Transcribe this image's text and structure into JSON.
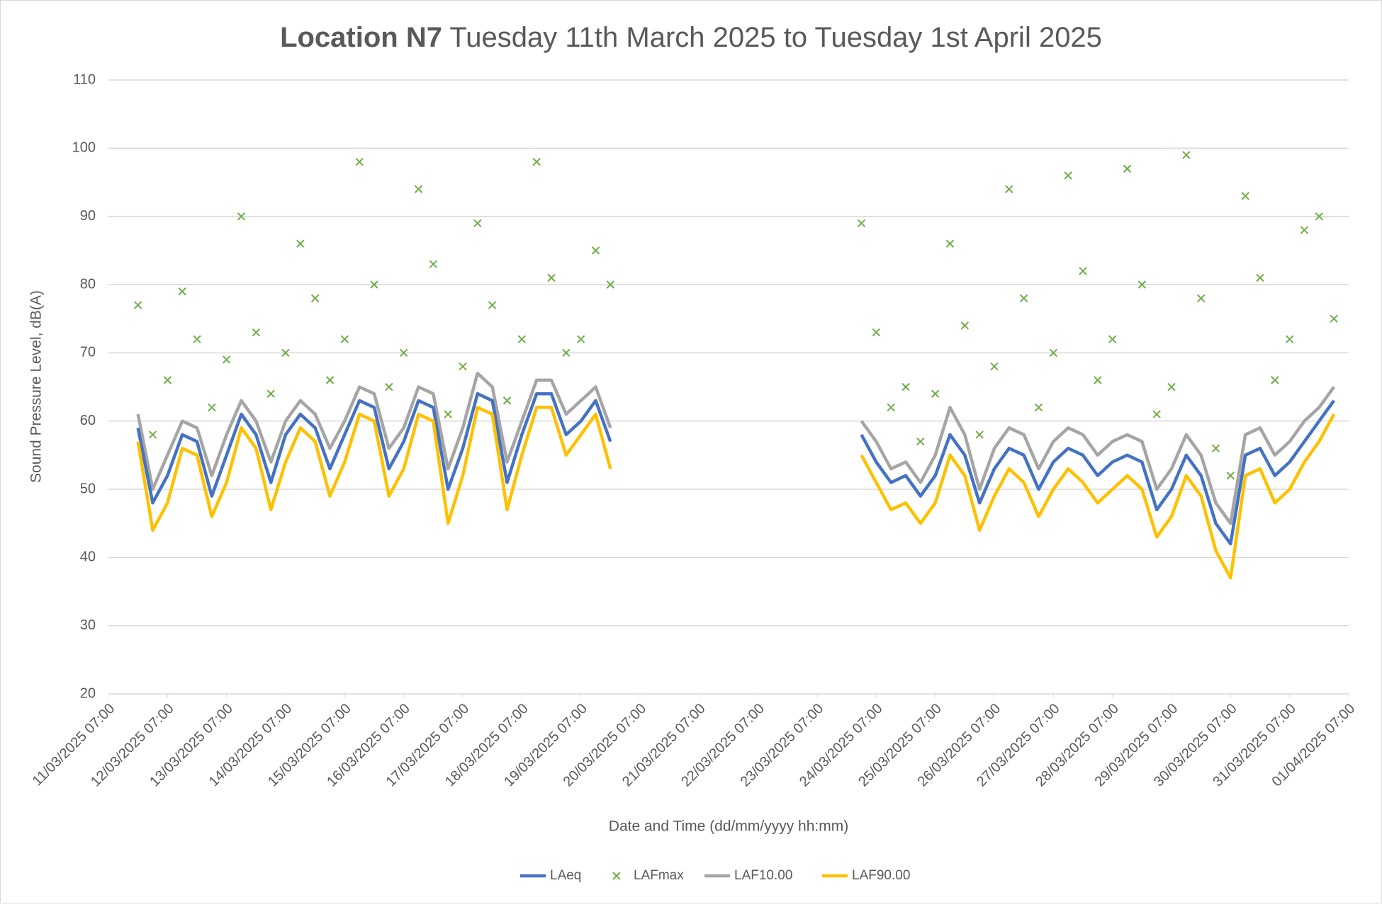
{
  "chart_data": {
    "type": "line",
    "title_bold": "Location N7",
    "title": "Tuesday 11th March 2025 to Tuesday 1st April 2025",
    "x_label": "Date and Time (dd/mm/yyyy hh:mm)",
    "y_label": "Sound Pressure Level, dB(A)",
    "ylim": [
      20,
      110
    ],
    "yticks": [
      20,
      30,
      40,
      50,
      60,
      70,
      80,
      90,
      100,
      110
    ],
    "grid": true,
    "legend": "bottom",
    "xlim": [
      "11/03/2025 07:00",
      "01/04/2025 07:00"
    ],
    "xticks": [
      "11/03/2025 07:00",
      "12/03/2025 07:00",
      "13/03/2025 07:00",
      "14/03/2025 07:00",
      "15/03/2025 07:00",
      "16/03/2025 07:00",
      "17/03/2025 07:00",
      "18/03/2025 07:00",
      "19/03/2025 07:00",
      "20/03/2025 07:00",
      "21/03/2025 07:00",
      "22/03/2025 07:00",
      "23/03/2025 07:00",
      "24/03/2025 07:00",
      "25/03/2025 07:00",
      "26/03/2025 07:00",
      "27/03/2025 07:00",
      "28/03/2025 07:00",
      "29/03/2025 07:00",
      "30/03/2025 07:00",
      "31/03/2025 07:00",
      "01/04/2025 07:00"
    ],
    "x": [
      "11/03/2025 19:00",
      "12/03/2025 01:00",
      "12/03/2025 07:00",
      "12/03/2025 13:00",
      "12/03/2025 19:00",
      "13/03/2025 01:00",
      "13/03/2025 07:00",
      "13/03/2025 13:00",
      "13/03/2025 19:00",
      "14/03/2025 01:00",
      "14/03/2025 07:00",
      "14/03/2025 13:00",
      "14/03/2025 19:00",
      "15/03/2025 01:00",
      "15/03/2025 07:00",
      "15/03/2025 13:00",
      "15/03/2025 19:00",
      "16/03/2025 01:00",
      "16/03/2025 07:00",
      "16/03/2025 13:00",
      "16/03/2025 19:00",
      "17/03/2025 01:00",
      "17/03/2025 07:00",
      "17/03/2025 13:00",
      "17/03/2025 19:00",
      "18/03/2025 01:00",
      "18/03/2025 07:00",
      "18/03/2025 13:00",
      "18/03/2025 19:00",
      "19/03/2025 01:00",
      "19/03/2025 07:00",
      "19/03/2025 13:00",
      "19/03/2025 19:00",
      "21/03/2025 07:00",
      "24/03/2025 01:00",
      "24/03/2025 07:00",
      "24/03/2025 13:00",
      "24/03/2025 19:00",
      "25/03/2025 01:00",
      "25/03/2025 07:00",
      "25/03/2025 13:00",
      "25/03/2025 19:00",
      "26/03/2025 01:00",
      "26/03/2025 07:00",
      "26/03/2025 13:00",
      "26/03/2025 19:00",
      "27/03/2025 01:00",
      "27/03/2025 07:00",
      "27/03/2025 13:00",
      "27/03/2025 19:00",
      "28/03/2025 01:00",
      "28/03/2025 07:00",
      "28/03/2025 13:00",
      "28/03/2025 19:00",
      "29/03/2025 01:00",
      "29/03/2025 07:00",
      "29/03/2025 13:00",
      "29/03/2025 19:00",
      "30/03/2025 01:00",
      "30/03/2025 07:00",
      "30/03/2025 13:00",
      "30/03/2025 19:00",
      "31/03/2025 01:00",
      "31/03/2025 07:00",
      "31/03/2025 13:00",
      "31/03/2025 19:00",
      "01/04/2025 01:00"
    ],
    "series": [
      {
        "name": "LAeq",
        "color": "#4472c4",
        "style": "line",
        "values": [
          59,
          48,
          52,
          58,
          57,
          49,
          55,
          61,
          58,
          51,
          58,
          61,
          59,
          53,
          58,
          63,
          62,
          53,
          57,
          63,
          62,
          50,
          56,
          64,
          63,
          51,
          58,
          64,
          64,
          58,
          60,
          63,
          57,
          null,
          58,
          54,
          51,
          52,
          49,
          52,
          58,
          55,
          48,
          53,
          56,
          55,
          50,
          54,
          56,
          55,
          52,
          54,
          55,
          54,
          47,
          50,
          55,
          52,
          45,
          42,
          55,
          56,
          52,
          54,
          57,
          60,
          63
        ]
      },
      {
        "name": "LAFmax",
        "color": "#70ad47",
        "style": "marker",
        "values": [
          77,
          58,
          66,
          79,
          72,
          62,
          69,
          90,
          73,
          64,
          70,
          86,
          78,
          66,
          72,
          98,
          80,
          65,
          70,
          94,
          83,
          61,
          68,
          89,
          77,
          63,
          72,
          98,
          81,
          70,
          72,
          85,
          80,
          null,
          89,
          73,
          62,
          65,
          57,
          64,
          86,
          74,
          58,
          68,
          94,
          78,
          62,
          70,
          96,
          82,
          66,
          72,
          97,
          80,
          61,
          65,
          99,
          78,
          56,
          52,
          93,
          81,
          66,
          72,
          88,
          90,
          75
        ]
      },
      {
        "name": "LAF10.00",
        "color": "#a5a5a5",
        "style": "line",
        "values": [
          61,
          50,
          55,
          60,
          59,
          52,
          58,
          63,
          60,
          54,
          60,
          63,
          61,
          56,
          60,
          65,
          64,
          56,
          59,
          65,
          64,
          53,
          59,
          67,
          65,
          54,
          60,
          66,
          66,
          61,
          63,
          65,
          59,
          null,
          60,
          57,
          53,
          54,
          51,
          55,
          62,
          58,
          50,
          56,
          59,
          58,
          53,
          57,
          59,
          58,
          55,
          57,
          58,
          57,
          50,
          53,
          58,
          55,
          48,
          45,
          58,
          59,
          55,
          57,
          60,
          62,
          65
        ]
      },
      {
        "name": "LAF90.00",
        "color": "#ffc000",
        "style": "line",
        "values": [
          57,
          44,
          48,
          56,
          55,
          46,
          51,
          59,
          56,
          47,
          54,
          59,
          57,
          49,
          54,
          61,
          60,
          49,
          53,
          61,
          60,
          45,
          52,
          62,
          61,
          47,
          55,
          62,
          62,
          55,
          58,
          61,
          53,
          null,
          55,
          51,
          47,
          48,
          45,
          48,
          55,
          52,
          44,
          49,
          53,
          51,
          46,
          50,
          53,
          51,
          48,
          50,
          52,
          50,
          43,
          46,
          52,
          49,
          41,
          37,
          52,
          53,
          48,
          50,
          54,
          57,
          61
        ]
      }
    ]
  }
}
